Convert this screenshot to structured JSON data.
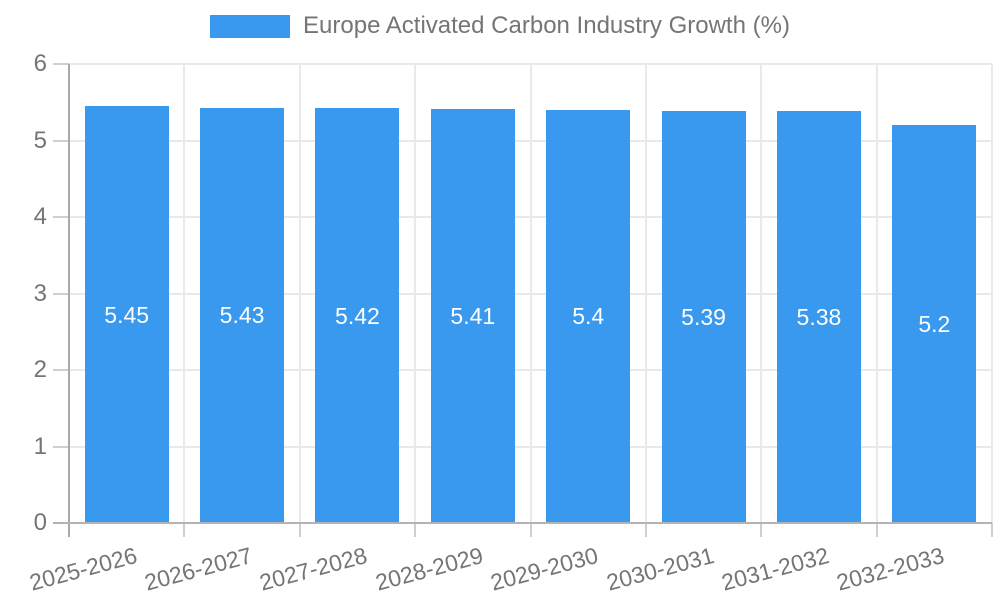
{
  "chart_data": {
    "type": "bar",
    "title": "Europe Activated Carbon Industry Growth (%)",
    "categories": [
      "2025-2026",
      "2026-2027",
      "2027-2028",
      "2028-2029",
      "2029-2030",
      "2030-2031",
      "2031-2032",
      "2032-2033"
    ],
    "values": [
      5.45,
      5.43,
      5.42,
      5.41,
      5.4,
      5.39,
      5.38,
      5.2
    ],
    "value_labels": [
      "5.45",
      "5.43",
      "5.42",
      "5.41",
      "5.4",
      "5.39",
      "5.38",
      "5.2"
    ],
    "xlabel": "",
    "ylabel": "",
    "ylim": [
      0,
      6
    ],
    "yticks": [
      0,
      1,
      2,
      3,
      4,
      5,
      6
    ],
    "grid": true,
    "legend_position": "top",
    "bar_color": "#3899EE",
    "value_label_color": "#ffffff",
    "axis_text_color": "#757575"
  }
}
